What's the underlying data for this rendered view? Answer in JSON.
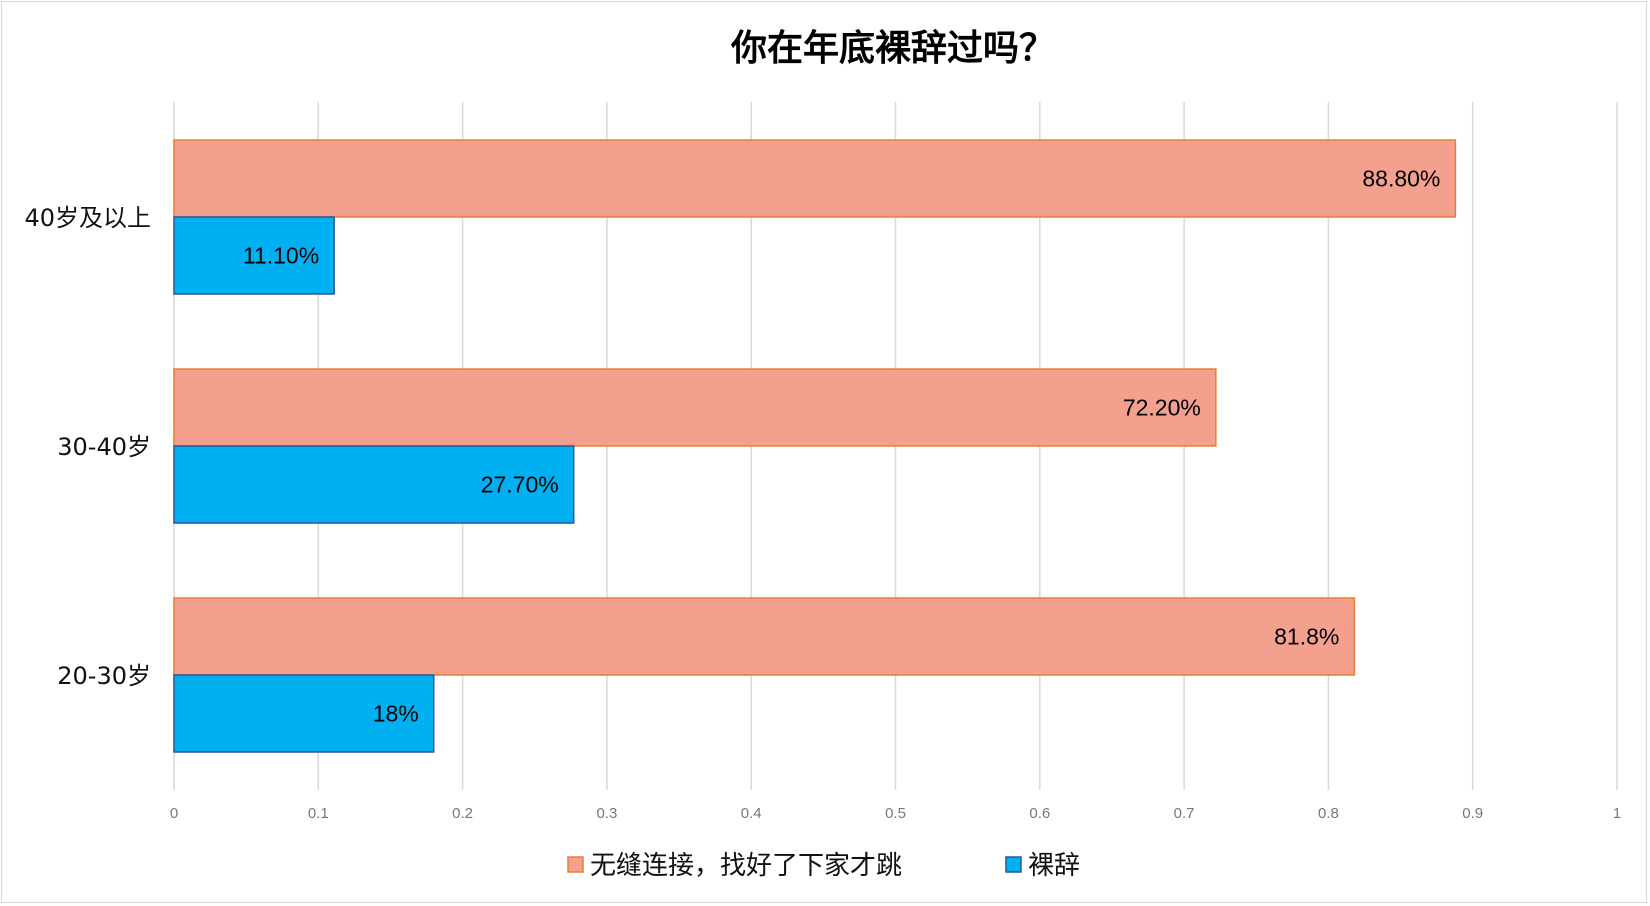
{
  "chart_data": {
    "type": "bar",
    "orientation": "horizontal",
    "title": "你在年底裸辞过吗？",
    "categories": [
      "40岁及以上",
      "30-40岁",
      "20-30岁"
    ],
    "series": [
      {
        "name": "无缝连接，找好了下家才跳",
        "values": [
          0.888,
          0.722,
          0.818
        ],
        "labels": [
          "88.80%",
          "72.20%",
          "81.8%"
        ],
        "color": "#f4a08f",
        "border": "#ed7d31"
      },
      {
        "name": "裸辞",
        "values": [
          0.111,
          0.277,
          0.18
        ],
        "labels": [
          "11.10%",
          "27.70%",
          "18%"
        ],
        "color": "#00b0f0",
        "border": "#2f5597"
      }
    ],
    "xlim": [
      0,
      1
    ],
    "xticks": [
      0,
      0.1,
      0.2,
      0.3,
      0.4,
      0.5,
      0.6,
      0.7,
      0.8,
      0.9,
      1
    ],
    "xtick_labels": [
      "0",
      "0.1",
      "0.2",
      "0.3",
      "0.4",
      "0.5",
      "0.6",
      "0.7",
      "0.8",
      "0.9",
      "1"
    ],
    "grid": "vertical",
    "legend": "bottom"
  }
}
